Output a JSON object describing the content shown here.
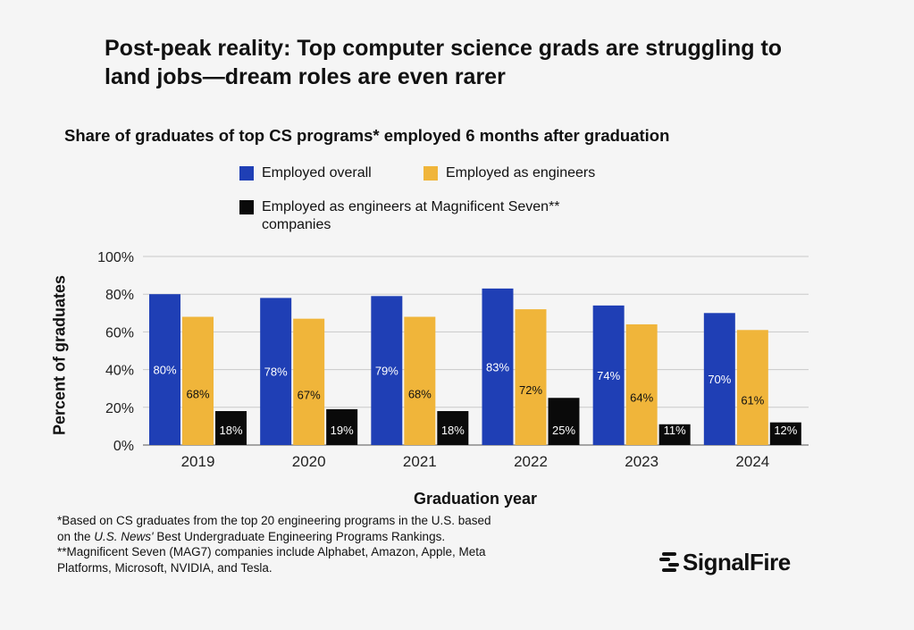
{
  "title": "Post-peak reality: Top computer science grads are struggling to land jobs—dream roles are even rarer",
  "subtitle": "Share of graduates of top CS programs* employed 6 months after graduation",
  "colors": {
    "overall": "#1f3fb5",
    "engineers": "#f0b53a",
    "mag7": "#0a0a0a",
    "background": "#f5f5f5"
  },
  "legend": {
    "overall": "Employed overall",
    "engineers": "Employed as engineers",
    "mag7": "Employed as engineers at Magnificent Seven** companies"
  },
  "chart_data": {
    "type": "bar",
    "categories": [
      "2019",
      "2020",
      "2021",
      "2022",
      "2023",
      "2024"
    ],
    "series": [
      {
        "name": "Employed overall",
        "values": [
          80,
          78,
          79,
          83,
          74,
          70
        ],
        "labels": [
          "80%",
          "78%",
          "79%",
          "83%",
          "74%",
          "70%"
        ]
      },
      {
        "name": "Employed as engineers",
        "values": [
          68,
          67,
          68,
          72,
          64,
          61
        ],
        "labels": [
          "68%",
          "67%",
          "68%",
          "72%",
          "64%",
          "61%"
        ]
      },
      {
        "name": "Employed as engineers at Magnificent Seven** companies",
        "values": [
          18,
          19,
          18,
          25,
          11,
          12
        ],
        "labels": [
          "18%",
          "19%",
          "18%",
          "25%",
          "11%",
          "12%"
        ]
      }
    ],
    "title": "Share of graduates of top CS programs* employed 6 months after graduation",
    "xlabel": "Graduation year",
    "ylabel": "Percent of graduates",
    "ylim": [
      0,
      100
    ],
    "yticks": [
      "0%",
      "20%",
      "40%",
      "60%",
      "80%",
      "100%"
    ],
    "grid": true,
    "legend_position": "top"
  },
  "footnote": {
    "line1": "*Based on CS graduates from the top 20 engineering programs in the U.S. based",
    "line2_pre": "on the ",
    "line2_italic": "U.S. News'",
    "line2_post": " Best Undergraduate Engineering Programs Rankings.",
    "line3": "**Magnificent Seven (MAG7) companies include Alphabet, Amazon, Apple, Meta",
    "line4": "Platforms, Microsoft, NVIDIA, and Tesla."
  },
  "logo": {
    "text": "SignalFire",
    "icon": "signalfire-logo-icon"
  }
}
